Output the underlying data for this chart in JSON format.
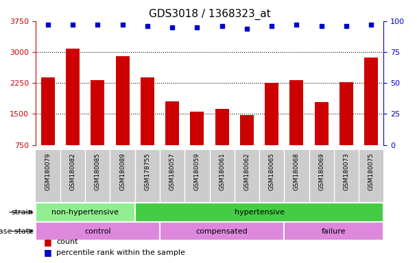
{
  "title": "GDS3018 / 1368323_at",
  "samples": [
    "GSM180079",
    "GSM180082",
    "GSM180085",
    "GSM180089",
    "GSM178755",
    "GSM180057",
    "GSM180059",
    "GSM180061",
    "GSM180062",
    "GSM180065",
    "GSM180068",
    "GSM180069",
    "GSM180073",
    "GSM180075"
  ],
  "counts": [
    2380,
    3080,
    2320,
    2900,
    2380,
    1800,
    1560,
    1620,
    1470,
    2260,
    2320,
    1780,
    2270,
    2870
  ],
  "percentile_ranks": [
    97,
    97,
    97,
    97,
    96,
    95,
    95,
    96,
    94,
    96,
    97,
    96,
    96,
    97
  ],
  "bar_color": "#cc0000",
  "dot_color": "#0000cc",
  "ylim_left": [
    750,
    3750
  ],
  "ylim_right": [
    0,
    100
  ],
  "yticks_left": [
    750,
    1500,
    2250,
    3000,
    3750
  ],
  "yticks_right": [
    0,
    25,
    50,
    75,
    100
  ],
  "grid_values": [
    1500,
    2250,
    3000
  ],
  "strain_groups": [
    {
      "label": "non-hypertensive",
      "start": 0,
      "end": 4,
      "color": "#90ee90"
    },
    {
      "label": "hypertensive",
      "start": 4,
      "end": 14,
      "color": "#44cc44"
    }
  ],
  "disease_groups": [
    {
      "label": "control",
      "start": 0,
      "end": 5
    },
    {
      "label": "compensated",
      "start": 5,
      "end": 10
    },
    {
      "label": "failure",
      "start": 10,
      "end": 14
    }
  ],
  "disease_color": "#dd88dd",
  "strain_label": "strain",
  "disease_label": "disease state",
  "legend_count_label": "count",
  "legend_percentile_label": "percentile rank within the sample",
  "title_fontsize": 11,
  "left_tick_color": "#cc0000",
  "right_tick_color": "#0000cc",
  "bar_width": 0.55,
  "tick_area_color": "#cccccc",
  "fig_width": 6.08,
  "fig_height": 3.84
}
